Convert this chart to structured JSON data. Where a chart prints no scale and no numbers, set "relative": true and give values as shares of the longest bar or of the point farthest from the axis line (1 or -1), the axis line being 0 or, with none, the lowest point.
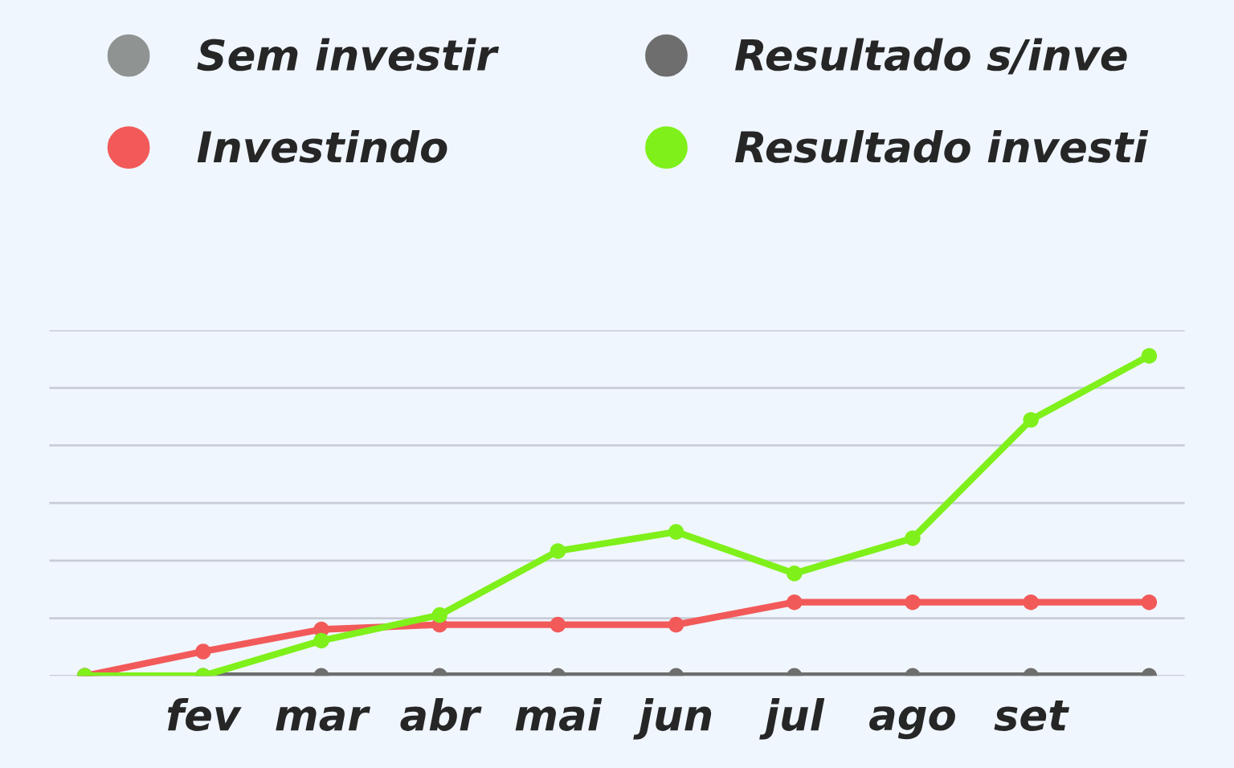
{
  "chart_data": {
    "type": "line",
    "relative": true,
    "categories": [
      null,
      "fev",
      "mar",
      "abr",
      "mai",
      "jun",
      "jul",
      "ago",
      "set",
      null
    ],
    "series": [
      {
        "name": "Sem investir",
        "color": "#8f9493",
        "values": [
          null,
          null,
          null,
          null,
          null,
          null,
          null,
          null,
          null,
          null
        ]
      },
      {
        "name": "Resultado s/inve",
        "color": "#6e6e6e",
        "values": [
          0,
          0,
          0,
          0,
          0,
          0,
          0,
          0,
          0,
          0
        ]
      },
      {
        "name": "Investindo",
        "color": "#f25a5a",
        "values": [
          0,
          0.076,
          0.145,
          0.16,
          0.16,
          0.16,
          0.23,
          0.23,
          0.23,
          0.23
        ]
      },
      {
        "name": "Resultado investi",
        "color": "#7ff01a",
        "values": [
          0,
          0,
          0.11,
          0.19,
          0.39,
          0.45,
          0.32,
          0.43,
          0.8,
          1
        ]
      }
    ],
    "marker": "circle",
    "line_style": "solid",
    "grid": "y",
    "legend": "top"
  }
}
